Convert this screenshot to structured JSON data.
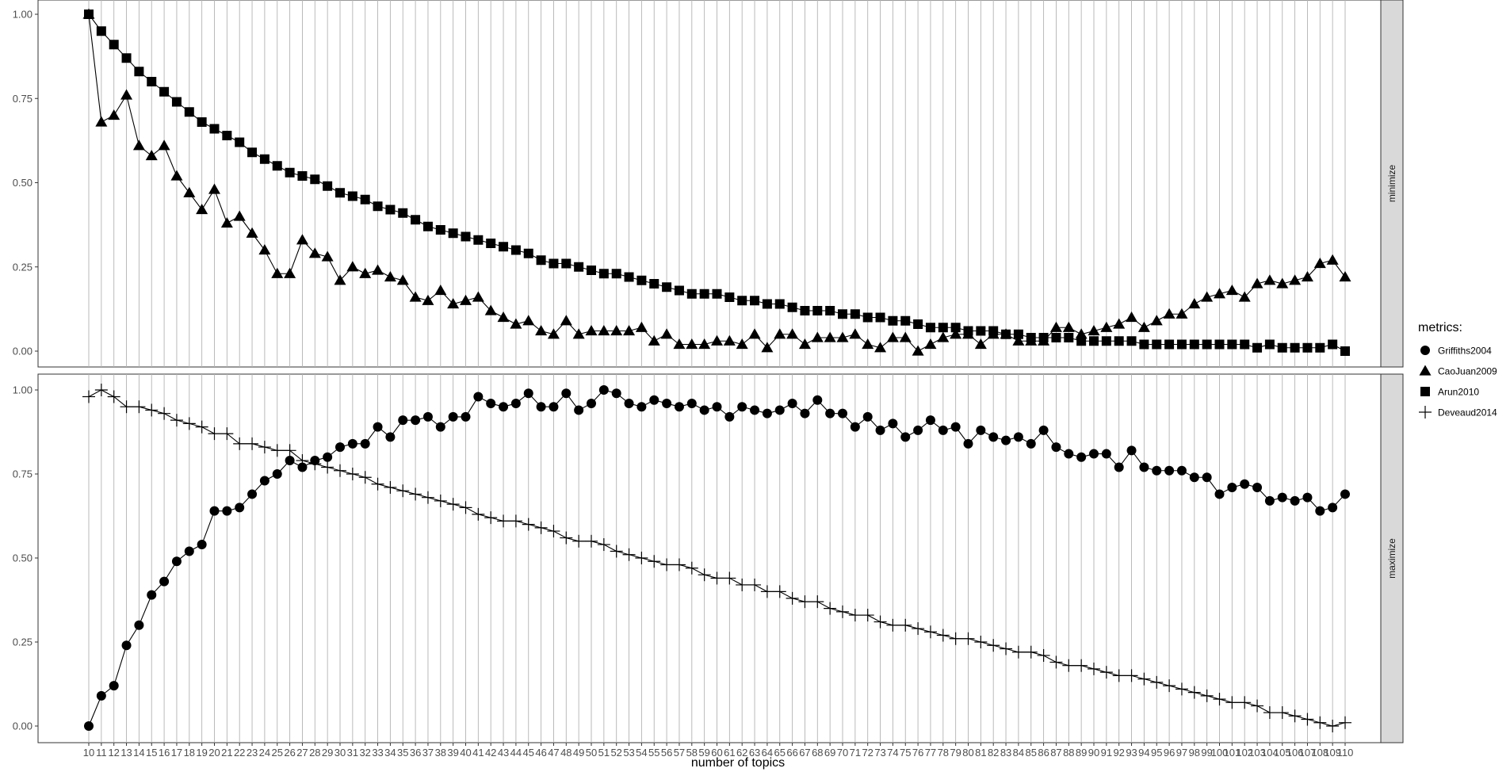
{
  "chart_data": {
    "type": "line",
    "xlabel": "number of topics",
    "legend": {
      "title": "metrics:",
      "position": "right",
      "entries": [
        "Griffiths2004",
        "CaoJuan2009",
        "Arun2010",
        "Deveaud2014"
      ]
    },
    "x": [
      10,
      11,
      12,
      13,
      14,
      15,
      16,
      17,
      18,
      19,
      20,
      21,
      22,
      23,
      24,
      25,
      26,
      27,
      28,
      29,
      30,
      31,
      32,
      33,
      34,
      35,
      36,
      37,
      38,
      39,
      40,
      41,
      42,
      43,
      44,
      45,
      46,
      47,
      48,
      49,
      50,
      51,
      52,
      53,
      54,
      55,
      56,
      57,
      58,
      59,
      60,
      61,
      62,
      63,
      64,
      65,
      66,
      67,
      68,
      69,
      70,
      71,
      72,
      73,
      74,
      75,
      76,
      77,
      78,
      79,
      80,
      81,
      82,
      83,
      84,
      85,
      86,
      87,
      88,
      89,
      90,
      91,
      92,
      93,
      94,
      95,
      96,
      97,
      98,
      99,
      100,
      101,
      102,
      103,
      104,
      105,
      106,
      107,
      108,
      109,
      110
    ],
    "x_tick_labels": [
      "10",
      "11",
      "12",
      "13",
      "14",
      "15",
      "16",
      "17",
      "18",
      "19",
      "20",
      "21",
      "22",
      "23",
      "24",
      "25",
      "26",
      "27",
      "28",
      "29",
      "30",
      "31",
      "32",
      "33",
      "34",
      "35",
      "36",
      "37",
      "38",
      "39",
      "40",
      "41",
      "42",
      "43",
      "44",
      "45",
      "46",
      "47",
      "48",
      "49",
      "50",
      "51",
      "52",
      "53",
      "54",
      "55",
      "56",
      "57",
      "58",
      "59",
      "60",
      "61",
      "62",
      "63",
      "64",
      "65",
      "66",
      "67",
      "68",
      "69",
      "70",
      "71",
      "72",
      "73",
      "74",
      "75",
      "76",
      "77",
      "78",
      "79",
      "80",
      "81",
      "82",
      "83",
      "84",
      "85",
      "86",
      "87",
      "88",
      "89",
      "90",
      "91",
      "92",
      "93",
      "94",
      "95",
      "96",
      "97",
      "98",
      "99",
      "100",
      "101",
      "102",
      "103",
      "104",
      "105",
      "106",
      "107",
      "108",
      "109",
      "110"
    ],
    "grid": true,
    "facets": [
      {
        "strip_label": "minimize",
        "ylim": [
          -0.05,
          1.05
        ],
        "y_ticks": [
          "0.00",
          "0.25",
          "0.50",
          "0.75",
          "1.00"
        ],
        "series": [
          {
            "name": "CaoJuan2009",
            "shape": "triangle",
            "values": [
              1.0,
              0.68,
              0.7,
              0.76,
              0.61,
              0.58,
              0.61,
              0.52,
              0.47,
              0.42,
              0.48,
              0.38,
              0.4,
              0.35,
              0.3,
              0.23,
              0.23,
              0.33,
              0.29,
              0.28,
              0.21,
              0.25,
              0.23,
              0.24,
              0.22,
              0.21,
              0.16,
              0.15,
              0.18,
              0.14,
              0.15,
              0.16,
              0.12,
              0.1,
              0.08,
              0.09,
              0.06,
              0.05,
              0.09,
              0.05,
              0.06,
              0.06,
              0.06,
              0.06,
              0.07,
              0.03,
              0.05,
              0.02,
              0.02,
              0.02,
              0.03,
              0.03,
              0.02,
              0.05,
              0.01,
              0.05,
              0.05,
              0.02,
              0.04,
              0.04,
              0.04,
              0.05,
              0.02,
              0.01,
              0.04,
              0.04,
              0.0,
              0.02,
              0.04,
              0.05,
              0.05,
              0.02,
              0.05,
              0.05,
              0.03,
              0.03,
              0.03,
              0.07,
              0.07,
              0.05,
              0.06,
              0.07,
              0.08,
              0.1,
              0.07,
              0.09,
              0.11,
              0.11,
              0.14,
              0.16,
              0.17,
              0.18,
              0.16,
              0.2,
              0.21,
              0.2,
              0.21,
              0.22,
              0.26,
              0.27,
              0.22
            ]
          },
          {
            "name": "Arun2010",
            "shape": "square",
            "values": [
              1.0,
              0.95,
              0.91,
              0.87,
              0.83,
              0.8,
              0.77,
              0.74,
              0.71,
              0.68,
              0.66,
              0.64,
              0.62,
              0.59,
              0.57,
              0.55,
              0.53,
              0.52,
              0.51,
              0.49,
              0.47,
              0.46,
              0.45,
              0.43,
              0.42,
              0.41,
              0.39,
              0.37,
              0.36,
              0.35,
              0.34,
              0.33,
              0.32,
              0.31,
              0.3,
              0.29,
              0.27,
              0.26,
              0.26,
              0.25,
              0.24,
              0.23,
              0.23,
              0.22,
              0.21,
              0.2,
              0.19,
              0.18,
              0.17,
              0.17,
              0.17,
              0.16,
              0.15,
              0.15,
              0.14,
              0.14,
              0.13,
              0.12,
              0.12,
              0.12,
              0.11,
              0.11,
              0.1,
              0.1,
              0.09,
              0.09,
              0.08,
              0.07,
              0.07,
              0.07,
              0.06,
              0.06,
              0.06,
              0.05,
              0.05,
              0.04,
              0.04,
              0.04,
              0.04,
              0.03,
              0.03,
              0.03,
              0.03,
              0.03,
              0.02,
              0.02,
              0.02,
              0.02,
              0.02,
              0.02,
              0.02,
              0.02,
              0.02,
              0.01,
              0.02,
              0.01,
              0.01,
              0.01,
              0.01,
              0.02,
              0.0
            ]
          }
        ]
      },
      {
        "strip_label": "maximize",
        "ylim": [
          -0.05,
          1.05
        ],
        "y_ticks": [
          "0.00",
          "0.25",
          "0.50",
          "0.75",
          "1.00"
        ],
        "series": [
          {
            "name": "Griffiths2004",
            "shape": "circle",
            "values": [
              0.0,
              0.09,
              0.12,
              0.24,
              0.3,
              0.39,
              0.43,
              0.49,
              0.52,
              0.54,
              0.64,
              0.64,
              0.65,
              0.69,
              0.73,
              0.75,
              0.79,
              0.77,
              0.79,
              0.8,
              0.83,
              0.84,
              0.84,
              0.89,
              0.86,
              0.91,
              0.91,
              0.92,
              0.89,
              0.92,
              0.92,
              0.98,
              0.96,
              0.95,
              0.96,
              0.99,
              0.95,
              0.95,
              0.99,
              0.94,
              0.96,
              1.0,
              0.99,
              0.96,
              0.95,
              0.97,
              0.96,
              0.95,
              0.96,
              0.94,
              0.95,
              0.92,
              0.95,
              0.94,
              0.93,
              0.94,
              0.96,
              0.93,
              0.97,
              0.93,
              0.93,
              0.89,
              0.92,
              0.88,
              0.9,
              0.86,
              0.88,
              0.91,
              0.88,
              0.89,
              0.84,
              0.88,
              0.86,
              0.85,
              0.86,
              0.84,
              0.88,
              0.83,
              0.81,
              0.8,
              0.81,
              0.81,
              0.77,
              0.82,
              0.77,
              0.76,
              0.76,
              0.76,
              0.74,
              0.74,
              0.69,
              0.71,
              0.72,
              0.71,
              0.67,
              0.68,
              0.67,
              0.68,
              0.64,
              0.65,
              0.69
            ]
          },
          {
            "name": "Deveaud2014",
            "shape": "plus",
            "values": [
              0.98,
              1.0,
              0.98,
              0.95,
              0.95,
              0.94,
              0.93,
              0.91,
              0.9,
              0.89,
              0.87,
              0.87,
              0.84,
              0.84,
              0.83,
              0.82,
              0.82,
              0.79,
              0.78,
              0.77,
              0.76,
              0.75,
              0.74,
              0.72,
              0.71,
              0.7,
              0.69,
              0.68,
              0.67,
              0.66,
              0.65,
              0.63,
              0.62,
              0.61,
              0.61,
              0.6,
              0.59,
              0.58,
              0.56,
              0.55,
              0.55,
              0.54,
              0.52,
              0.51,
              0.5,
              0.49,
              0.48,
              0.48,
              0.47,
              0.45,
              0.44,
              0.44,
              0.42,
              0.42,
              0.4,
              0.4,
              0.38,
              0.37,
              0.37,
              0.35,
              0.34,
              0.33,
              0.33,
              0.31,
              0.3,
              0.3,
              0.29,
              0.28,
              0.27,
              0.26,
              0.26,
              0.25,
              0.24,
              0.23,
              0.22,
              0.22,
              0.21,
              0.19,
              0.18,
              0.18,
              0.17,
              0.16,
              0.15,
              0.15,
              0.14,
              0.13,
              0.12,
              0.11,
              0.1,
              0.09,
              0.08,
              0.07,
              0.07,
              0.06,
              0.04,
              0.04,
              0.03,
              0.02,
              0.01,
              0.0,
              0.01
            ]
          }
        ]
      }
    ]
  }
}
